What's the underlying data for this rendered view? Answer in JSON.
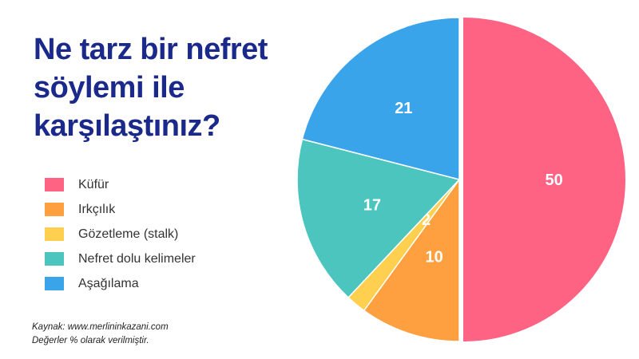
{
  "title": "Ne tarz bir nefret söylemi ile karşılaştınız?",
  "footnote": {
    "source": "Kaynak: www.merlininkazani.com",
    "note": "Değerler % olarak verilmiştir."
  },
  "chart_data": {
    "type": "pie",
    "title": "Ne tarz bir nefret söylemi ile karşılaştınız?",
    "legend_position": "left",
    "slices": [
      {
        "label": "Küfür",
        "value": 50,
        "color": "#ff6384",
        "exploded": true
      },
      {
        "label": "Irkçılık",
        "value": 10,
        "color": "#ffa040",
        "exploded": false
      },
      {
        "label": "Gözetleme (stalk)",
        "value": 2,
        "color": "#ffd050",
        "exploded": false
      },
      {
        "label": "Nefret dolu kelimeler",
        "value": 17,
        "color": "#4bc5be",
        "exploded": false
      },
      {
        "label": "Aşağılama",
        "value": 21,
        "color": "#3aa4eb",
        "exploded": false
      }
    ],
    "units": "%"
  }
}
